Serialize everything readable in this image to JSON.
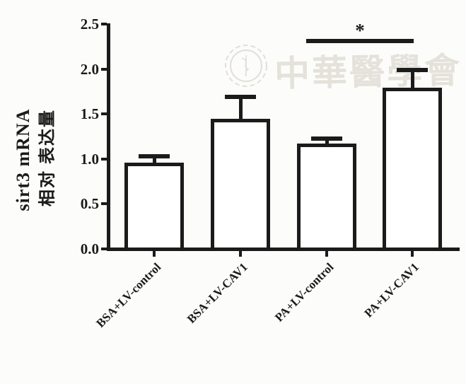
{
  "figure": {
    "background": "#fcfcfa",
    "ink_color": "#1b1b1b",
    "watermark_text": "中華醫學會",
    "watermark_logo": "chinese-medical-association-snake-staff-emblem"
  },
  "chart_data": {
    "type": "bar",
    "title": "",
    "ylabel": "sirt3 mRNA",
    "ylabel_cn": "相对 表达量",
    "xlabel": "",
    "categories": [
      "BSA+LV-control",
      "BSA+LV-CAV1",
      "PA+LV-control",
      "PA+LV-CAV1"
    ],
    "values": [
      0.96,
      1.45,
      1.17,
      1.79
    ],
    "errors": [
      0.07,
      0.24,
      0.06,
      0.2
    ],
    "ylim": [
      0.0,
      2.5
    ],
    "ytick_labels": [
      "0.0",
      "0.5",
      "1.0",
      "1.5",
      "2.0",
      "2.5"
    ],
    "grid": false,
    "legend": null,
    "bar_fill": "#ffffff",
    "bar_border": "#1b1b1b",
    "error_bar_direction": "upper-only",
    "significance": {
      "label": "*",
      "from_index": 2,
      "to_index": 3
    }
  }
}
